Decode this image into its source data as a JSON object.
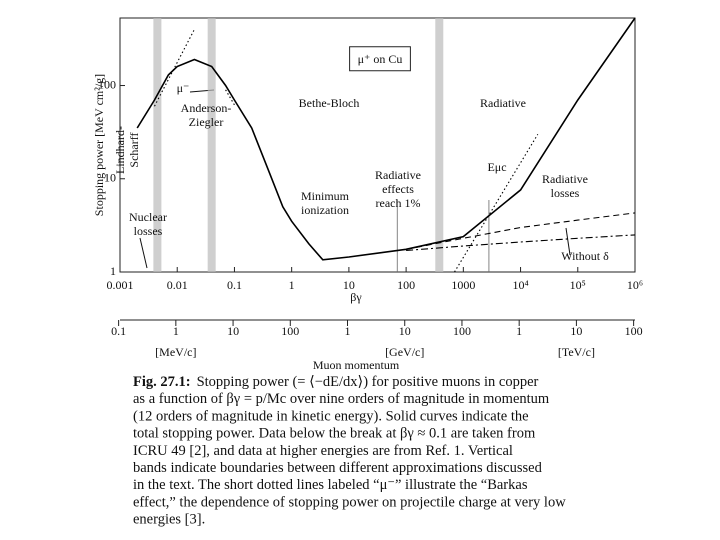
{
  "chart_data": {
    "type": "line",
    "log_x": true,
    "log_y": true,
    "color": "#000000",
    "ylabel": "Stopping power [MeV cm²/g]",
    "xlabel": "βγ",
    "xlim": [
      0.001,
      1000000
    ],
    "ylim": [
      1,
      530
    ],
    "xticks": [
      0.001,
      0.01,
      0.1,
      1,
      10,
      100,
      1000,
      {
        "value": 10000,
        "label": "10⁴"
      },
      {
        "value": 100000,
        "label": "10⁵"
      },
      {
        "value": 1000000,
        "label": "10⁶"
      }
    ],
    "yticks": [
      1,
      10,
      100
    ],
    "x2label": "Muon momentum",
    "x2lim": [
      0.1057,
      105700000
    ],
    "x2ticks": [
      0.1,
      1,
      10,
      100,
      {
        "value": 1000,
        "label": "1"
      },
      {
        "value": 10000,
        "label": "10"
      },
      {
        "value": 100000,
        "label": "100"
      },
      {
        "value": 1000000,
        "label": "1"
      },
      {
        "value": 10000000,
        "label": "10"
      },
      {
        "value": 100000000,
        "label": "100"
      }
    ],
    "x2units": [
      "[MeV/c]",
      "[GeV/c]",
      "[TeV/c]"
    ],
    "bands": [
      0.0045,
      0.04,
      380
    ],
    "markers": [
      70,
      2800
    ],
    "series": [
      {
        "style": "solid",
        "x": [
          0.002,
          0.004,
          0.007,
          0.01,
          0.02,
          0.04,
          0.07,
          0.1,
          0.2,
          0.4,
          0.7,
          1,
          2,
          3.5,
          10,
          100,
          1000,
          10000,
          100000,
          1000000
        ],
        "values": [
          35,
          70,
          130,
          160,
          190,
          160,
          100,
          70,
          35,
          12,
          5,
          3.5,
          2,
          1.35,
          1.45,
          1.75,
          2.4,
          7.6,
          70,
          530
        ]
      },
      {
        "style": "dashed",
        "x": [
          100,
          1000,
          10000,
          100000,
          1000000
        ],
        "values": [
          1.75,
          2.3,
          3.0,
          3.6,
          4.3
        ]
      },
      {
        "style": "dashdot",
        "x": [
          100,
          1000,
          10000,
          100000,
          1000000
        ],
        "values": [
          1.7,
          1.9,
          2.1,
          2.3,
          2.5
        ]
      },
      {
        "style": "dotted",
        "x": [
          700,
          20000
        ],
        "values": [
          1,
          30
        ]
      },
      {
        "style": "dotted",
        "x": [
          0.004,
          0.02
        ],
        "values": [
          60,
          400
        ]
      },
      {
        "style": "dotted",
        "x": [
          0.07,
          0.1
        ],
        "values": [
          90,
          62
        ]
      }
    ],
    "annotations": [
      [
        "μ⁺ on Cu"
      ],
      [
        "μ⁻"
      ],
      [
        "Anderson-",
        "Ziegler"
      ],
      [
        "Lindhard-",
        "Scharff"
      ],
      [
        "Bethe-Bloch"
      ],
      [
        "Radiative"
      ],
      [
        "Minimum",
        "ionization"
      ],
      [
        "Radiative",
        "effects",
        "reach 1%"
      ],
      [
        "Eμc"
      ],
      [
        "Radiative",
        "losses"
      ],
      [
        "Without δ"
      ],
      [
        "Nuclear",
        "losses"
      ]
    ]
  },
  "caption": {
    "label": "Fig. 27.1:",
    "lines": [
      "Stopping power (= ⟨−dE/dx⟩) for positive muons in copper",
      "as a function of βγ = p/Mc over nine orders of magnitude in momentum",
      "(12 orders of magnitude in kinetic energy). Solid curves indicate the",
      "total stopping power. Data below the break at βγ ≈ 0.1 are taken from",
      "ICRU 49 [2], and data at higher energies are from Ref. 1. Vertical",
      "bands indicate boundaries between different approximations discussed",
      "in the text. The short dotted lines labeled “μ⁻” illustrate the “Barkas",
      "effect,” the dependence of stopping power on projectile charge at very low",
      "energies [3]."
    ]
  }
}
